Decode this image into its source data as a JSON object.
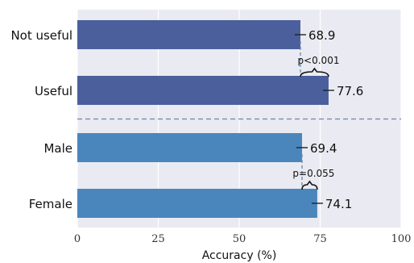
{
  "chart_data": {
    "type": "bar",
    "orientation": "horizontal",
    "categories": [
      "Not useful",
      "Useful",
      "Male",
      "Female"
    ],
    "values": [
      68.9,
      77.6,
      69.4,
      74.1
    ],
    "value_labels": [
      "68.9",
      "77.6",
      "69.4",
      "74.1"
    ],
    "bar_colors": [
      "#4a5f9c",
      "#4a5f9c",
      "#4a86bc",
      "#4a86bc"
    ],
    "groups": [
      {
        "members": [
          0,
          1
        ],
        "comparison": "p<0.001"
      },
      {
        "members": [
          2,
          3
        ],
        "comparison": "p=0.055"
      }
    ],
    "group_separator": "dashed",
    "xlabel": "Accuracy (%)",
    "xlim": [
      0,
      100
    ],
    "xticks": [
      0,
      25,
      50,
      75,
      100
    ],
    "grid": true,
    "background": "#eaeaf2"
  }
}
